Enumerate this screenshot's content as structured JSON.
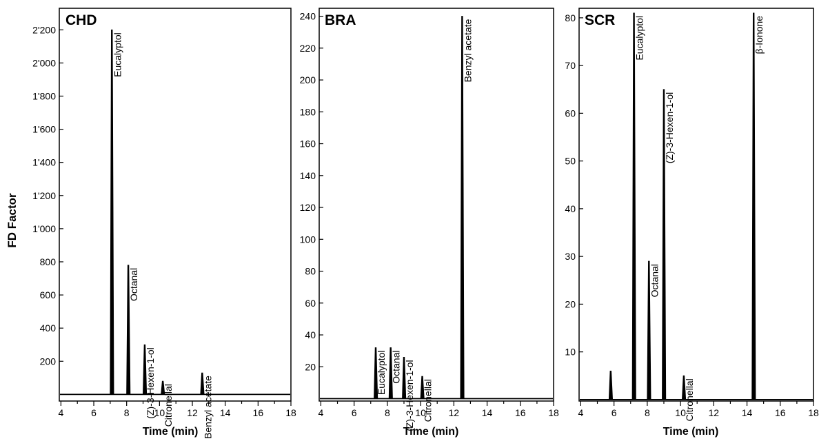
{
  "chart_data": [
    {
      "type": "line",
      "title": "CHD",
      "xlabel": "Time (min)",
      "ylabel": "FD Factor",
      "xlim": [
        3.9,
        18
      ],
      "ylim": [
        -40,
        2330
      ],
      "xticks": [
        4,
        6,
        8,
        10,
        12,
        14,
        16,
        18
      ],
      "yticks": [
        200,
        400,
        600,
        800,
        1000,
        1200,
        1400,
        1600,
        1800,
        2000,
        2200
      ],
      "ytick_labels": [
        "200",
        "400",
        "600",
        "800",
        "1'000",
        "1'200",
        "1'400",
        "1'600",
        "1'800",
        "2'000",
        "2'200"
      ],
      "peaks": [
        {
          "label": "Eucalyptol",
          "x": 7.1,
          "y": 2200
        },
        {
          "label": "Octanal",
          "x": 8.1,
          "y": 780
        },
        {
          "label": "(Z)-3-Hexen-1-ol",
          "x": 9.1,
          "y": 300
        },
        {
          "label": "Citronellal",
          "x": 10.2,
          "y": 80
        },
        {
          "label": "Benzyl acetate",
          "x": 12.6,
          "y": 130
        }
      ]
    },
    {
      "type": "line",
      "title": "BRA",
      "xlabel": "Time (min)",
      "ylabel": "",
      "xlim": [
        3.9,
        18
      ],
      "ylim": [
        -1.5,
        245
      ],
      "xticks": [
        4,
        6,
        8,
        10,
        12,
        14,
        16,
        18
      ],
      "yticks": [
        20,
        40,
        60,
        80,
        100,
        120,
        140,
        160,
        180,
        200,
        220,
        240
      ],
      "ytick_labels": [
        "20",
        "40",
        "60",
        "80",
        "100",
        "120",
        "140",
        "160",
        "180",
        "200",
        "220",
        "240"
      ],
      "peaks": [
        {
          "label": "Eucalyptol",
          "x": 7.3,
          "y": 32
        },
        {
          "label": "Octanal",
          "x": 8.2,
          "y": 32
        },
        {
          "label": "(Z)-3-Hexen-1-ol",
          "x": 9.0,
          "y": 26
        },
        {
          "label": "Citronellal",
          "x": 10.1,
          "y": 14
        },
        {
          "label": "Benzyl acetate",
          "x": 12.5,
          "y": 240
        }
      ]
    },
    {
      "type": "line",
      "title": "SCR",
      "xlabel": "Time (min)",
      "ylabel": "",
      "xlim": [
        3.9,
        18
      ],
      "ylim": [
        -0.3,
        82
      ],
      "xticks": [
        4,
        6,
        8,
        10,
        12,
        14,
        16,
        18
      ],
      "yticks": [
        10,
        20,
        30,
        40,
        50,
        60,
        70,
        80
      ],
      "ytick_labels": [
        "10",
        "20",
        "30",
        "40",
        "50",
        "60",
        "70",
        "80"
      ],
      "peaks": [
        {
          "label": "",
          "x": 5.8,
          "y": 6
        },
        {
          "label": "Eucalyptol",
          "x": 7.2,
          "y": 81
        },
        {
          "label": "Octanal",
          "x": 8.1,
          "y": 29
        },
        {
          "label": "(Z)-3-Hexen-1-ol",
          "x": 9.0,
          "y": 65
        },
        {
          "label": "Citronellal",
          "x": 10.2,
          "y": 5
        },
        {
          "label": "β-Ionone",
          "x": 14.4,
          "y": 81
        }
      ]
    }
  ]
}
